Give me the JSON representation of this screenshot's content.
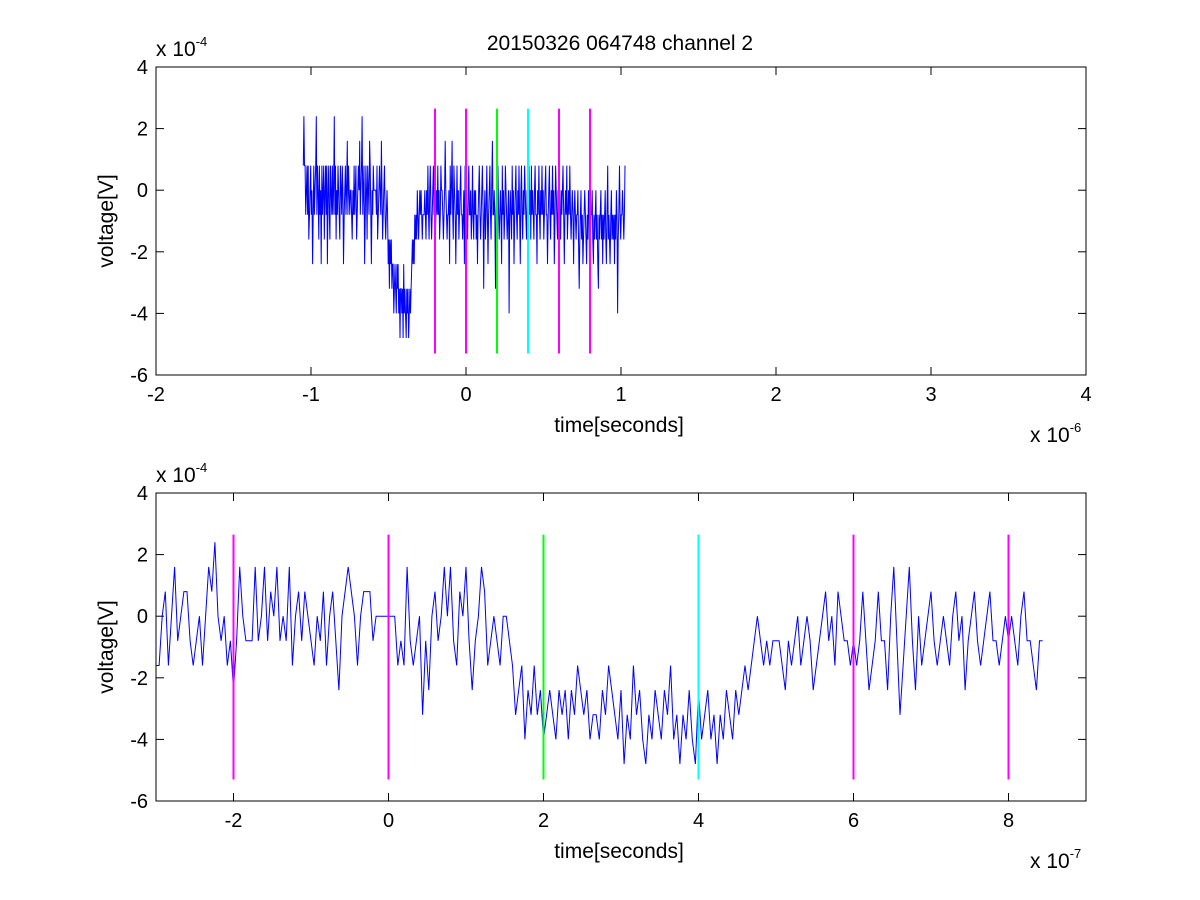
{
  "figure_title": "20150326 064748 channel 2",
  "chart_data": [
    {
      "type": "line",
      "title": "20150326 064748 channel 2",
      "xlabel": "time[seconds]",
      "ylabel": "voltage[V]",
      "x_multiplier": {
        "base": "x 10",
        "exponent": "-6"
      },
      "y_multiplier": {
        "base": "x 10",
        "exponent": "-4"
      },
      "xlim": [
        -2e-06,
        4e-06
      ],
      "ylim": [
        -0.0006,
        0.0004
      ],
      "xticks": [
        -2e-06,
        -1e-06,
        0,
        1e-06,
        2e-06,
        3e-06,
        4e-06
      ],
      "xtick_labels": [
        "-2",
        "-1",
        "0",
        "1",
        "2",
        "3",
        "4"
      ],
      "yticks": [
        -0.0006,
        -0.0004,
        -0.0002,
        0,
        0.0002,
        0.0004
      ],
      "ytick_labels": [
        "-6",
        "-4",
        "-2",
        "0",
        "2",
        "4"
      ],
      "grid": false,
      "series": [
        {
          "color": "#0000ff",
          "x_start": -1.05e-06,
          "x_step": 4e-09,
          "values_e4": [
            0.8,
            2.4,
            0.8,
            0.8,
            -0.8,
            0,
            0.8,
            -0.8,
            0.8,
            -1.6,
            -0.8,
            0,
            0.8,
            -0.8,
            0,
            -2.4,
            -0.8,
            0.8,
            -0.8,
            0,
            0.8,
            2.4,
            -0.8,
            0.8,
            0,
            -1.6,
            0.8,
            -0.8,
            0,
            -2.4,
            0.8,
            -0.8,
            0,
            0.8,
            -1.6,
            0,
            0.8,
            -0.8,
            0.8,
            -2.4,
            0,
            0.8,
            -0.8,
            -1.6,
            0.8,
            0,
            -0.8,
            0.8,
            -0.8,
            0,
            2.4,
            -0.8,
            0.8,
            -1.6,
            0,
            -0.8,
            0.8,
            0,
            -0.8,
            -1.6,
            0.8,
            0,
            -0.8,
            0.8,
            0,
            -2.4,
            -0.8,
            0,
            0.8,
            -0.8,
            0,
            1.6,
            -0.8,
            0.8,
            0,
            -0.8,
            0,
            0,
            -0.8,
            -1.6,
            0,
            -0.8,
            0.8,
            -0.8,
            0,
            0.8,
            -1.6,
            -0.8,
            0,
            0.8,
            0,
            1.6,
            -0.8,
            0,
            0.8,
            2.4,
            -0.8,
            0,
            0.8,
            -2.4,
            -0.8,
            0.8,
            0,
            -1.6,
            0.8,
            0,
            -0.8,
            1.6,
            0.8,
            -0.8,
            -2.4,
            0,
            -0.8,
            0.8,
            0,
            0,
            0,
            0,
            -0.8,
            0.8,
            -1.6,
            -0.8,
            0,
            0.8,
            0,
            -0.8,
            1.6,
            0,
            -1.6,
            -0.8,
            0,
            0.8,
            -0.8,
            -1.6,
            -0.8,
            0,
            -0.8,
            -2.4,
            -1.6,
            -3.2,
            -1.6,
            -2.4,
            -1.6,
            -3.2,
            -2.4,
            -2.4,
            -4,
            -3.2,
            -2.4,
            -3.2,
            -4,
            -2.4,
            -3.2,
            -2.4,
            -4,
            -3.2,
            -4.8,
            -3.2,
            -3.2,
            -4,
            -3.2,
            -4.8,
            -2.4,
            -4,
            -3.2,
            -4,
            -4.8,
            -3.2,
            -4,
            -3.2,
            -4.8,
            -4,
            -3.2,
            -4,
            -3.2,
            -2.4,
            -1.6,
            -2.4,
            -1.6,
            -2.4,
            -0.8,
            -1.6,
            -0.8,
            -1.6,
            0,
            -0.8,
            -1.6,
            -0.8,
            0,
            -0.8,
            0,
            -0.8,
            -1.6,
            -0.8,
            -0.8,
            -0.8,
            0,
            -0.8,
            -1.6,
            0,
            -0.8,
            0.8,
            -0.8,
            -1.6,
            0,
            0.8,
            -0.8,
            -1.6,
            -0.8,
            0,
            0.8,
            -0.8,
            -0.8,
            -1.6,
            -0.8,
            0,
            -0.8,
            0.8,
            -0.8,
            0,
            -1.6,
            -0.8,
            0.8,
            0,
            0,
            -0.8,
            -1.6,
            -0.8,
            0,
            1.6,
            0,
            -0.8,
            -1.6,
            -0.8,
            -0.8,
            0,
            -2.4,
            0.8,
            -0.8,
            0,
            1.6,
            -0.8,
            -1.6,
            0.8,
            0,
            -0.8,
            -2.4,
            -0.8,
            0.8,
            -0.8,
            0,
            -1.6,
            -0.8,
            0,
            0.8,
            -0.8,
            -0.8,
            -1.6,
            -0.8,
            0,
            -2.4,
            0.8,
            -0.8,
            0,
            -0.8,
            -1.6,
            0,
            0.8,
            -0.8,
            -0.8,
            0,
            -1.6,
            -0.8,
            0.8,
            -0.8,
            -1.6,
            0,
            -0.8,
            0,
            -1.6,
            -0.8,
            -2.4,
            -0.8,
            0,
            0.8,
            -0.8,
            -1.6,
            -0.8,
            0,
            0.8,
            -0.8,
            -3.2,
            -0.8,
            0,
            -1.6,
            -0.8,
            0.8,
            -0.8,
            -2.4,
            -0.8,
            0,
            0.8,
            -0.8,
            -1.6,
            0,
            1.6,
            -0.8,
            -0.8,
            0,
            -0.8,
            -3.2,
            -0.8,
            0,
            -0.8,
            0.8,
            -0.8,
            -1.6,
            -0.8,
            0,
            -0.8,
            -2.4,
            0.8,
            -0.8,
            0,
            -1.6,
            -0.8,
            0.8,
            0,
            -0.8,
            -1.6,
            -0.8,
            0,
            -4,
            -0.8,
            0,
            -0.8,
            -1.6,
            0.8,
            -0.8,
            0,
            -2.4,
            -0.8,
            0,
            0.8,
            -0.8,
            -1.6,
            0,
            -0.8,
            0.8,
            -0.8,
            -2.4,
            0,
            0.8,
            -0.8,
            -1.6,
            0,
            -0.8,
            0.8,
            0,
            -0.8,
            -1.6,
            0,
            -2.4,
            -0.8,
            0.8,
            -0.8,
            0,
            -1.6,
            0.8,
            -0.8,
            0,
            -0.8,
            -1.6,
            0,
            0.8,
            -0.8,
            -0.8,
            -2.4,
            0,
            -0.8,
            0.8,
            -0.8,
            -1.6,
            0,
            -0.8,
            0.8,
            -0.8,
            0,
            -1.6,
            -0.8,
            0,
            0.8,
            -0.8,
            -0.8,
            -2.4,
            -0.8,
            0,
            0.8,
            -0.8,
            -1.6,
            0,
            -0.8,
            0.8,
            -0.8,
            0,
            -2.4,
            -0.8,
            0.8,
            0,
            -0.8,
            -1.6,
            0,
            -0.8,
            0.8,
            -0.8,
            -1.6,
            0,
            -0.8,
            0,
            0.8,
            -0.8,
            -2.4,
            -0.8,
            0,
            -0.8,
            0.8,
            -1.6,
            -0.8,
            0,
            -0.8,
            0.8,
            -0.8,
            -1.6,
            -0.8,
            0,
            -0.8,
            -2.4,
            -0.8,
            0,
            -0.8,
            -1.6,
            -0.8,
            -0.8,
            0,
            -1.6,
            -3.2,
            -1.6,
            -0.8,
            0,
            -1.6,
            -0.8,
            -2.4,
            -1.6,
            -0.8,
            0,
            -0.8,
            -1.6,
            -2.4,
            -0.8,
            -1.6,
            0,
            -0.8,
            -3.2,
            -1.6,
            -0.8,
            -0.8,
            0,
            -1.6,
            -2.4,
            -0.8,
            -1.6,
            -0.8,
            0,
            -1.6,
            -0.8,
            -2.4,
            -3.2,
            -0.8,
            -1.6,
            -0.8,
            0,
            -1.6,
            -0.8,
            -2.4,
            -0.8,
            -1.6,
            -0.8,
            0,
            -1.6,
            -2.4,
            -0.8,
            0.8,
            -1.6,
            -0.8,
            -1.6,
            -2.4,
            -0.8,
            0,
            -1.6,
            -0.8,
            -1.6,
            -0.8,
            -2.4,
            -0.8,
            -1.6,
            0,
            -0.8,
            -4,
            -1.6,
            -0.8,
            0.8,
            -0.8,
            -1.6,
            -0.8,
            -0.8,
            0,
            -0.8,
            -1.6,
            -0.8,
            0.8
          ]
        }
      ],
      "vertical_markers": [
        {
          "x": -2e-07,
          "color": "#ff00ff"
        },
        {
          "x": 0,
          "color": "#ff00ff"
        },
        {
          "x": 2e-07,
          "color": "#00ff00"
        },
        {
          "x": 4e-07,
          "color": "#00ffff"
        },
        {
          "x": 6e-07,
          "color": "#ff00ff"
        },
        {
          "x": 8e-07,
          "color": "#ff00ff"
        }
      ],
      "marker_y_range": [
        -0.00053,
        0.000265
      ]
    },
    {
      "type": "line",
      "title": "",
      "xlabel": "time[seconds]",
      "ylabel": "voltage[V]",
      "x_multiplier": {
        "base": "x 10",
        "exponent": "-7"
      },
      "y_multiplier": {
        "base": "x 10",
        "exponent": "-4"
      },
      "xlim": [
        -3e-07,
        9e-07
      ],
      "ylim": [
        -0.0006,
        0.0004
      ],
      "xticks": [
        -2e-07,
        0,
        2e-07,
        4e-07,
        6e-07,
        8e-07
      ],
      "xtick_labels": [
        "-2",
        "0",
        "2",
        "4",
        "6",
        "8"
      ],
      "yticks": [
        -0.0006,
        -0.0004,
        -0.0002,
        0,
        0.0002,
        0.0004
      ],
      "ytick_labels": [
        "-6",
        "-4",
        "-2",
        "0",
        "2",
        "4"
      ],
      "grid": false,
      "series": [
        {
          "color": "#0000ff",
          "x_start": -3e-07,
          "x_step": 4e-09,
          "values_e4": [
            -1.6,
            -1.6,
            0,
            0.8,
            -1.6,
            0,
            1.6,
            -0.8,
            0,
            0.8,
            0.8,
            -0.8,
            -1.6,
            -0.8,
            0,
            -1.6,
            0,
            1.6,
            0.8,
            2.4,
            0,
            -0.8,
            0,
            -1.6,
            -0.8,
            -2.4,
            -0.8,
            1.6,
            0,
            -0.8,
            -0.8,
            -0.8,
            1.6,
            -0.8,
            0,
            1.6,
            -0.8,
            0.8,
            0,
            1.6,
            -0.8,
            0,
            -0.8,
            1.6,
            -1.6,
            0,
            0.8,
            -0.8,
            0.8,
            0,
            -0.8,
            -1.6,
            0,
            -0.8,
            0.8,
            -1.6,
            0,
            0.8,
            -0.8,
            -2.4,
            0,
            0.8,
            1.6,
            0.8,
            0,
            -1.6,
            0,
            0.8,
            0.8,
            0.8,
            -0.8,
            0,
            0,
            0,
            0,
            0,
            0,
            0,
            -1.6,
            -0.8,
            -1.6,
            1.6,
            -0.8,
            -1.6,
            -0.8,
            0,
            -3.2,
            -0.8,
            -2.4,
            0,
            0.8,
            -0.8,
            0,
            1.6,
            0,
            1.6,
            -0.8,
            -1.6,
            0.8,
            0,
            1.6,
            -0.8,
            -2.4,
            -0.8,
            0,
            1.6,
            0.8,
            -1.6,
            -0.8,
            0,
            -0.8,
            -1.6,
            0,
            0,
            -0.8,
            -1.6,
            -3.2,
            -2.4,
            -1.6,
            -4,
            -2.4,
            -3.2,
            -1.6,
            -3.2,
            -2.4,
            -4,
            -3.2,
            -2.4,
            -3.2,
            -4,
            -2.4,
            -3.2,
            -2.4,
            -4,
            -2.4,
            -3.2,
            -1.6,
            -2.4,
            -3.2,
            -2.4,
            -4,
            -3.2,
            -3.2,
            -4,
            -2.4,
            -3.2,
            -1.6,
            -2.4,
            -3.2,
            -4,
            -2.4,
            -4.8,
            -3.2,
            -4,
            -1.6,
            -3.2,
            -2.4,
            -4,
            -4.8,
            -3.2,
            -4,
            -2.4,
            -3.2,
            -4,
            -2.4,
            -3.2,
            -1.6,
            -4,
            -3.2,
            -4.8,
            -3.2,
            -4,
            -2.4,
            -4,
            -4.8,
            -2.4,
            -4,
            -3.2,
            -2.4,
            -4,
            -3.2,
            -4.8,
            -3.2,
            -4,
            -2.4,
            -3.2,
            -4,
            -2.4,
            -3.2,
            -2.4,
            -1.6,
            -2.4,
            -1.6,
            -0.8,
            0,
            -0.8,
            -1.6,
            -0.8,
            -1.6,
            -0.8,
            -0.8,
            -0.8,
            -1.6,
            -2.4,
            -0.8,
            -1.6,
            -0.8,
            0,
            -1.6,
            -0.8,
            0,
            -0.8,
            -2.4,
            -1.6,
            -0.8,
            0,
            0.8,
            -0.8,
            0,
            -1.6,
            0.8,
            0,
            -0.8,
            -0.8,
            -1.6,
            -0.8,
            -1.6,
            -0.8,
            0.8,
            -0.8,
            -2.4,
            -1.6,
            -0.8,
            0.8,
            -0.8,
            -0.8,
            -2.4,
            0,
            1.6,
            -0.8,
            -3.2,
            -1.6,
            0,
            1.6,
            -0.8,
            -2.4,
            0,
            -1.6,
            -0.8,
            0,
            0.8,
            -0.8,
            -1.6,
            -0.8,
            0,
            -0.8,
            -1.6,
            0,
            0.8,
            -0.8,
            0,
            -2.4,
            -0.8,
            0,
            0.8,
            -0.8,
            -1.6,
            -0.8,
            0,
            0.8,
            -0.8,
            -0.8,
            -1.6,
            -0.8,
            0,
            -0.8,
            0,
            -0.8,
            -1.6,
            0,
            0.8,
            -0.8,
            -0.8,
            -1.6,
            -2.4,
            -0.8,
            -0.8
          ]
        }
      ],
      "vertical_markers": [
        {
          "x": -2e-07,
          "color": "#ff00ff"
        },
        {
          "x": 0,
          "color": "#ff00ff"
        },
        {
          "x": 2e-07,
          "color": "#00ff00"
        },
        {
          "x": 4e-07,
          "color": "#00ffff"
        },
        {
          "x": 6e-07,
          "color": "#ff00ff"
        },
        {
          "x": 8e-07,
          "color": "#ff00ff"
        }
      ],
      "marker_y_range": [
        -0.00053,
        0.000265
      ]
    }
  ]
}
